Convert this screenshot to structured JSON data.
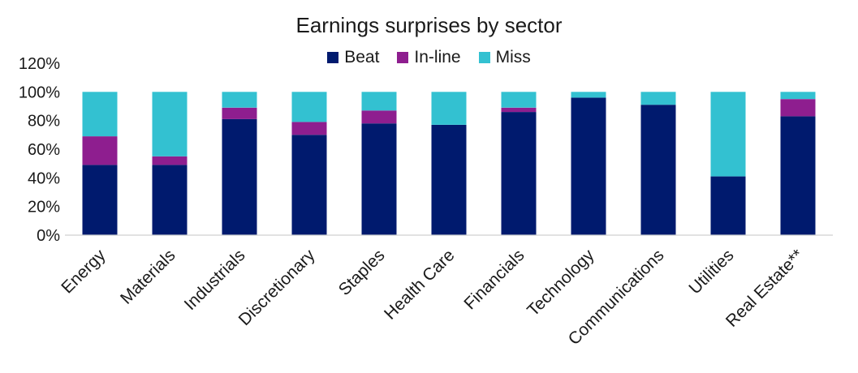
{
  "chart_data": {
    "type": "bar",
    "stacked": true,
    "title": "Earnings surprises by sector",
    "xlabel": "",
    "ylabel": "",
    "ylim": [
      0,
      120
    ],
    "yticks": [
      "0%",
      "20%",
      "40%",
      "60%",
      "80%",
      "100%",
      "120%"
    ],
    "y_tick_values": [
      0,
      20,
      40,
      60,
      80,
      100,
      120
    ],
    "grid": false,
    "legend_position": "top-center",
    "categories": [
      "Energy",
      "Materials",
      "Industrials",
      "Discretionary",
      "Staples",
      "Health Care",
      "Financials",
      "Technology",
      "Communications",
      "Utilities",
      "Real Estate**"
    ],
    "series": [
      {
        "name": "Beat",
        "color": "#001a6e",
        "values": [
          49,
          49,
          81,
          70,
          78,
          77,
          86,
          96,
          91,
          41,
          83
        ]
      },
      {
        "name": "In-line",
        "color": "#8e1e8f",
        "values": [
          20,
          6,
          8,
          9,
          9,
          0,
          3,
          0,
          0,
          0,
          12
        ]
      },
      {
        "name": "Miss",
        "color": "#33c1d1",
        "values": [
          31,
          45,
          11,
          21,
          13,
          23,
          11,
          4,
          9,
          59,
          5
        ]
      }
    ]
  }
}
